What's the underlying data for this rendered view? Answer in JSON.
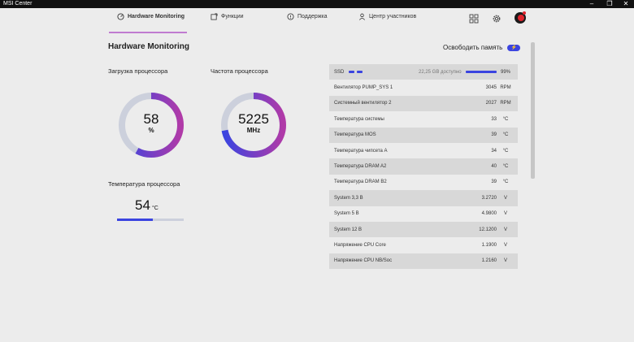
{
  "window": {
    "title": "MSI Center"
  },
  "nav": {
    "tabs": [
      {
        "label": "Hardware Monitoring",
        "active": true
      },
      {
        "label": "Функции"
      },
      {
        "label": "Поддержка"
      },
      {
        "label": "Центр участников"
      }
    ]
  },
  "page": {
    "title": "Hardware Monitoring",
    "free_memory_label": "Освободить память"
  },
  "cpu_load": {
    "label": "Загрузка процессора",
    "value": "58",
    "unit": "%",
    "fraction": 0.58
  },
  "cpu_freq": {
    "label": "Частота процессора",
    "value": "5225",
    "unit": "MHz",
    "fraction": 0.72
  },
  "cpu_temp": {
    "label": "Температура процессора",
    "value": "54",
    "unit": "°C",
    "fraction": 0.54
  },
  "ssd": {
    "name": "SSD",
    "available": "22,25 GB доступно",
    "percent": "99%"
  },
  "stats": [
    {
      "name": "Вентилятор PUMP_SYS 1",
      "value": "3045",
      "unit": "RPM"
    },
    {
      "name": "Системный вентилятор 2",
      "value": "2027",
      "unit": "RPM"
    },
    {
      "name": "Температура системы",
      "value": "33",
      "unit": "°C"
    },
    {
      "name": "Температура MOS",
      "value": "39",
      "unit": "°C"
    },
    {
      "name": "Температура чипсета A",
      "value": "34",
      "unit": "°C"
    },
    {
      "name": "Температура DRAM A2",
      "value": "40",
      "unit": "°C"
    },
    {
      "name": "Температура DRAM B2",
      "value": "39",
      "unit": "°C"
    },
    {
      "name": "System 3,3 В",
      "value": "3.2720",
      "unit": "V"
    },
    {
      "name": "System 5 В",
      "value": "4.9800",
      "unit": "V"
    },
    {
      "name": "System 12 В",
      "value": "12.1200",
      "unit": "V"
    },
    {
      "name": "Напряжение CPU Core",
      "value": "1.1900",
      "unit": "V"
    },
    {
      "name": "Напряжение CPU NB/Soc",
      "value": "1.2160",
      "unit": "V"
    }
  ],
  "colors": {
    "accent": "#3b44e0",
    "gauge_gradient_end": "#b03aa8",
    "gauge_track": "#ccd0dc"
  }
}
